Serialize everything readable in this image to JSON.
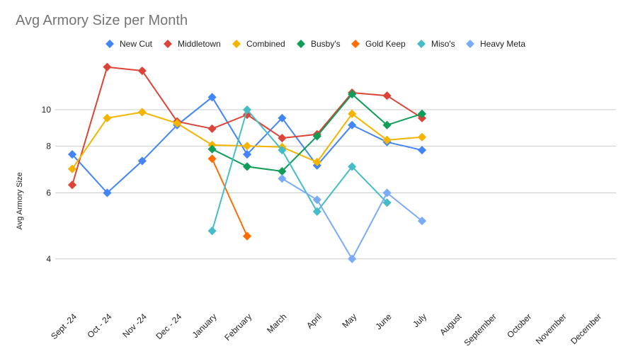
{
  "chart_data": {
    "type": "line",
    "title": "Avg Armory Size per Month",
    "xlabel": "",
    "ylabel": "Avg Armory Size",
    "y_scale": "log",
    "ylim": [
      3.3,
      13.5
    ],
    "yticks": [
      4,
      6,
      8,
      10
    ],
    "grid": true,
    "legend_position": "top",
    "categories": [
      "Sept -24",
      "Oct - 24",
      "Nov -24",
      "Dec - 24",
      "January",
      "February",
      "March",
      "April",
      "May",
      "June",
      "July",
      "August",
      "September",
      "October",
      "November",
      "December"
    ],
    "series": [
      {
        "name": "New Cut",
        "color": "#4285F4",
        "values": [
          7.6,
          6.0,
          7.3,
          9.1,
          10.8,
          7.6,
          9.5,
          7.1,
          9.1,
          8.2,
          7.8,
          null,
          null,
          null,
          null,
          null
        ]
      },
      {
        "name": "Middletown",
        "color": "#DB4437",
        "values": [
          6.3,
          13.0,
          12.7,
          9.3,
          8.9,
          9.7,
          8.4,
          8.6,
          11.1,
          10.9,
          9.5,
          null,
          null,
          null,
          null,
          null
        ]
      },
      {
        "name": "Combined",
        "color": "#F4B400",
        "values": [
          6.95,
          9.5,
          9.85,
          9.2,
          8.05,
          8.0,
          7.95,
          7.25,
          9.75,
          8.3,
          8.45,
          null,
          null,
          null,
          null,
          null
        ]
      },
      {
        "name": "Busby's",
        "color": "#0F9D58",
        "values": [
          null,
          null,
          null,
          null,
          7.85,
          7.05,
          6.85,
          8.5,
          11.0,
          9.1,
          9.75,
          null,
          null,
          null,
          null,
          null
        ]
      },
      {
        "name": "Gold Keep",
        "color": "#FF6D01",
        "values": [
          null,
          null,
          null,
          null,
          7.4,
          4.6,
          null,
          null,
          null,
          null,
          null,
          null,
          null,
          null,
          null,
          null
        ]
      },
      {
        "name": "Miso's",
        "color": "#46BDC6",
        "values": [
          null,
          null,
          null,
          null,
          4.75,
          10.0,
          7.8,
          5.35,
          7.05,
          5.65,
          null,
          null,
          null,
          null,
          null,
          null
        ]
      },
      {
        "name": "Heavy Meta",
        "color": "#7BAAF7",
        "values": [
          null,
          null,
          null,
          null,
          null,
          null,
          6.55,
          5.75,
          4.0,
          6.0,
          5.05,
          null,
          null,
          null,
          null,
          null
        ]
      }
    ]
  }
}
